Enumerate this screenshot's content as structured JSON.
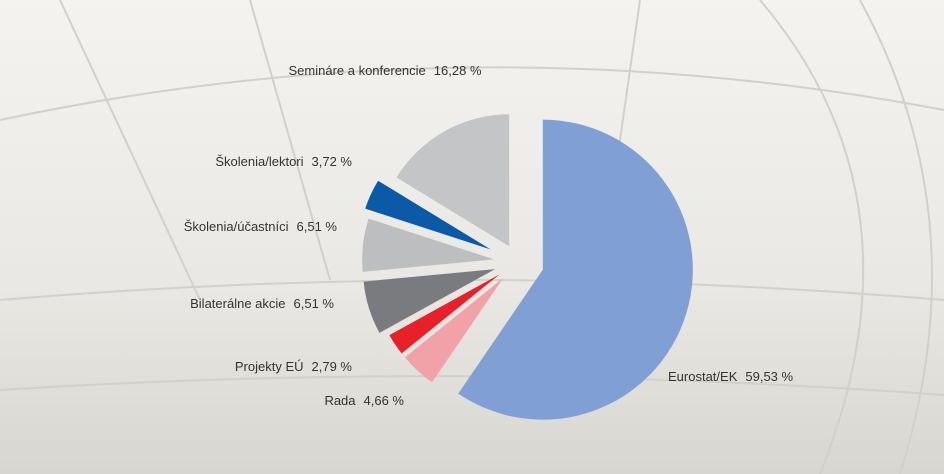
{
  "chart_data": {
    "type": "pie",
    "categories": [
      "Eurostat/EK",
      "Rada",
      "Projekty EÚ",
      "Bilaterálne akcie",
      "Školenia/účastníci",
      "Školenia/lektori",
      "Semináre a konferencie"
    ],
    "values": [
      59.53,
      4.66,
      2.79,
      6.51,
      6.51,
      3.72,
      16.28
    ],
    "value_labels": [
      "59,53 %",
      "4,66 %",
      "2,79 %",
      "6,51 %",
      "6,51 %",
      "3,72 %",
      "16,28 %"
    ],
    "colors": [
      "#809fd4",
      "#f3a1a9",
      "#e8202a",
      "#7a7b7e",
      "#bdbec0",
      "#0b5aa8",
      "#c4c5c7"
    ]
  }
}
